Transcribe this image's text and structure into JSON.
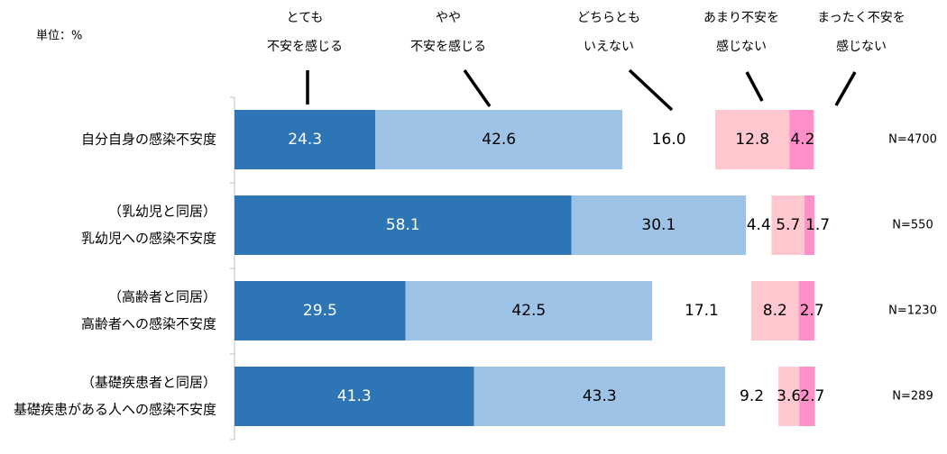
{
  "chart_data": {
    "type": "bar",
    "orientation": "horizontal",
    "stacked": true,
    "unit_label": "単位：%",
    "legend_placement": "top",
    "categories": [
      [
        "自分自身の感染不安度"
      ],
      [
        "（乳幼児と同居）",
        "乳幼児への感染不安度"
      ],
      [
        "（高齢者と同居）",
        "高齢者への感染不安度"
      ],
      [
        "（基礎疾患者と同居）",
        "基礎疾患がある人への感染不安度"
      ]
    ],
    "n_labels": [
      "N=4700",
      "N=550",
      "N=1230",
      "N=289"
    ],
    "series": [
      {
        "name": [
          "とても",
          "不安を感じる"
        ],
        "color": "#2e75b6",
        "label_color": "#ffffff",
        "values": [
          24.3,
          58.1,
          29.5,
          41.3
        ]
      },
      {
        "name": [
          "やや",
          "不安を感じる"
        ],
        "color": "#9dc3e6",
        "label_color": "#000000",
        "values": [
          42.6,
          30.1,
          42.5,
          43.3
        ]
      },
      {
        "name": [
          "どちらとも",
          "いえない"
        ],
        "color": "#ffffff",
        "label_color": "#000000",
        "values": [
          16.0,
          4.4,
          17.1,
          9.2
        ]
      },
      {
        "name": [
          "あまり不安を",
          "感じない"
        ],
        "color": "#ffc7ce",
        "label_color": "#000000",
        "values": [
          12.8,
          5.7,
          8.2,
          3.6
        ]
      },
      {
        "name": [
          "まったく不安を",
          "感じない"
        ],
        "color": "#ff8fc8",
        "label_color": "#000000",
        "values": [
          4.2,
          1.7,
          2.7,
          2.7
        ]
      }
    ],
    "xlim": [
      0,
      105
    ]
  }
}
